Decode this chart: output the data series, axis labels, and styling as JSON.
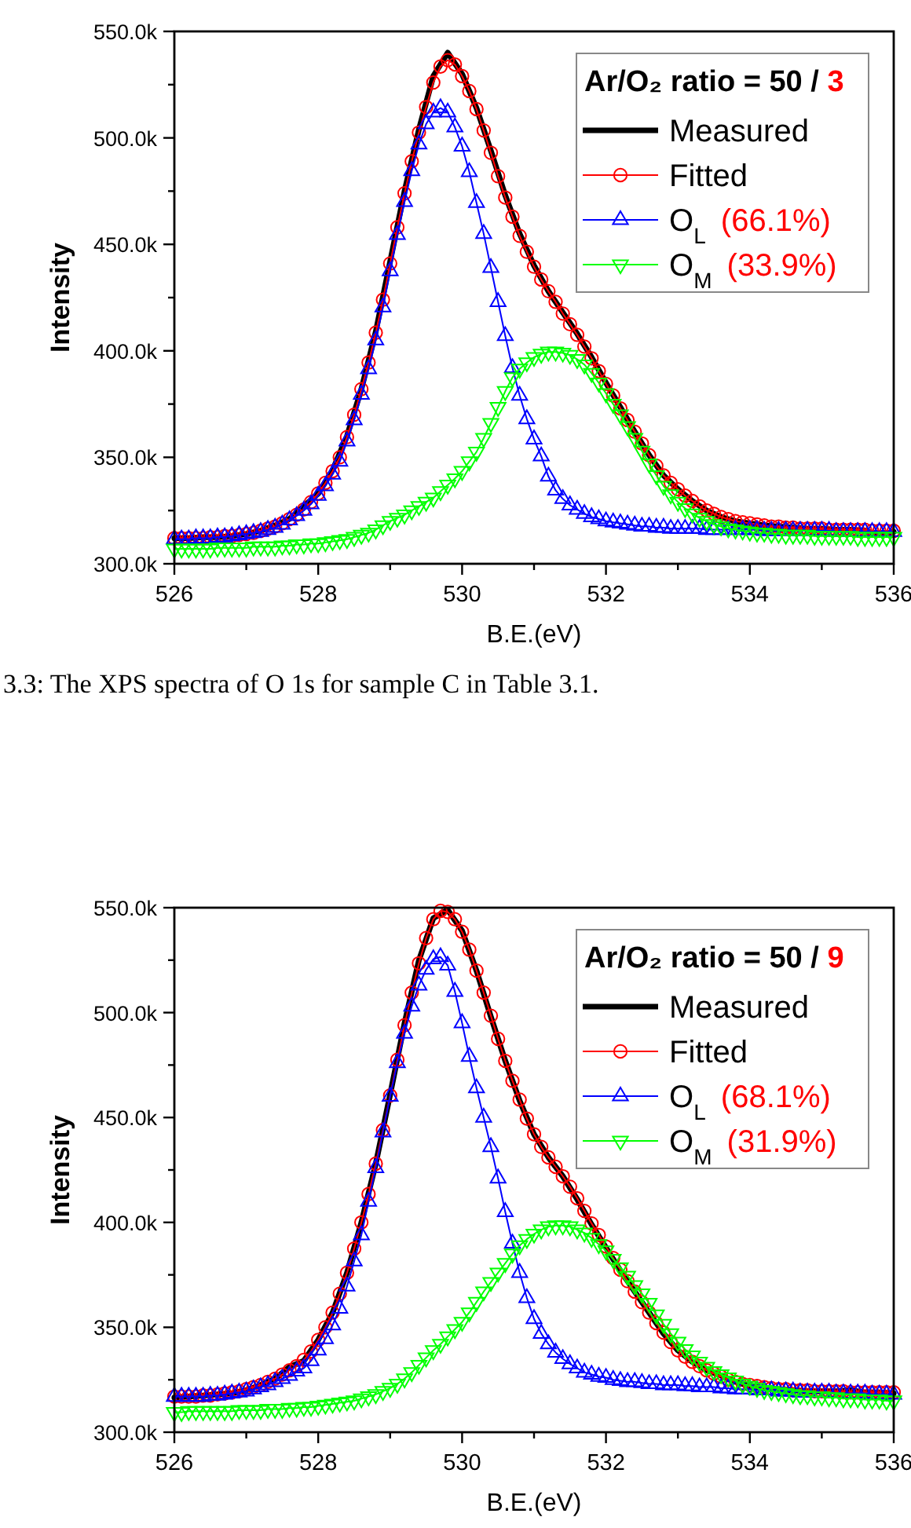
{
  "chart_data": [
    {
      "type": "line",
      "xlabel": "B.E.(eV)",
      "ylabel": "Intensity",
      "legend": "top right",
      "legend_title": "Ar/O₂ ratio = 50 / 3",
      "xlim": [
        526,
        536
      ],
      "xticks": [
        526,
        {
          "value": 527,
          "label": null
        },
        528,
        {
          "value": 529,
          "label": null
        },
        530,
        {
          "value": 531,
          "label": null
        },
        532,
        {
          "value": 533,
          "label": null
        },
        534,
        {
          "value": 535,
          "label": null
        },
        536
      ],
      "ylim": [
        300000,
        550000
      ],
      "yticks": [
        {
          "value": 300000,
          "label": "300.0k"
        },
        {
          "value": 325000,
          "label": null
        },
        {
          "value": 350000,
          "label": "350.0k"
        },
        {
          "value": 375000,
          "label": null
        },
        {
          "value": 400000,
          "label": "400.0k"
        },
        {
          "value": 425000,
          "label": null
        },
        {
          "value": 450000,
          "label": "450.0k"
        },
        {
          "value": 475000,
          "label": null
        },
        {
          "value": 500000,
          "label": "500.0k"
        },
        {
          "value": 525000,
          "label": null
        },
        {
          "value": 550000,
          "label": "550.0k"
        }
      ],
      "annotations": [
        "3.3: The XPS spectra of O 1s for sample C in Table 3.1."
      ],
      "x": [
        526,
        526.1,
        526.2,
        526.3,
        526.4,
        526.5,
        526.6,
        526.7,
        526.8,
        526.9,
        527,
        527.1,
        527.2,
        527.3,
        527.4,
        527.5,
        527.6,
        527.7,
        527.8,
        527.9,
        528,
        528.1,
        528.2,
        528.3,
        528.4,
        528.5,
        528.6,
        528.7,
        528.8,
        528.9,
        529,
        529.1,
        529.2,
        529.3,
        529.4,
        529.5,
        529.6,
        529.7,
        529.8,
        529.9,
        530,
        530.1,
        530.2,
        530.3,
        530.4,
        530.5,
        530.6,
        530.7,
        530.8,
        530.9,
        531,
        531.1,
        531.2,
        531.3,
        531.4,
        531.5,
        531.6,
        531.7,
        531.8,
        531.9,
        532,
        532.1,
        532.2,
        532.3,
        532.4,
        532.5,
        532.6,
        532.7,
        532.8,
        532.9,
        533,
        533.1,
        533.2,
        533.3,
        533.4,
        533.5,
        533.6,
        533.7,
        533.8,
        533.9,
        534,
        534.1,
        534.2,
        534.3,
        534.4,
        534.5,
        534.6,
        534.7,
        534.8,
        534.9,
        535,
        535.1,
        535.2,
        535.3,
        535.4,
        535.5,
        535.6,
        535.7,
        535.8,
        535.9,
        536
      ],
      "series": [
        {
          "name": "Measured",
          "marker": "none",
          "color": "#000000",
          "x": [
            526,
            526.2,
            526.4,
            526.6,
            526.8,
            527,
            527.2,
            527.4,
            527.6,
            527.8,
            528,
            528.2,
            528.4,
            528.6,
            528.8,
            529,
            529.2,
            529.4,
            529.6,
            529.8,
            530,
            530.2,
            530.4,
            530.6,
            530.8,
            531,
            531.2,
            531.4,
            531.6,
            531.8,
            532,
            532.2,
            532.4,
            532.6,
            532.8,
            533,
            533.2,
            533.4,
            533.6,
            533.8,
            534,
            534.2,
            534.4,
            534.6,
            534.8,
            535,
            535.2,
            535.4,
            535.6,
            535.8,
            536
          ],
          "values": [
            312000,
            312000,
            312500,
            312500,
            313000,
            314000,
            315500,
            318000,
            321000,
            327000,
            333000,
            344000,
            360000,
            382000,
            409000,
            442000,
            475000,
            504000,
            529000,
            540000,
            530000,
            514000,
            494000,
            473000,
            455000,
            440000,
            428000,
            418000,
            408000,
            397000,
            385000,
            373500,
            362000,
            351000,
            341500,
            335000,
            329500,
            325000,
            322000,
            320000,
            319000,
            318000,
            317500,
            317000,
            316500,
            316500,
            316000,
            316000,
            315500,
            313500,
            315000
          ]
        },
        {
          "name": "Fitted",
          "marker": "circle",
          "color": "#ff0000",
          "values": [
            312000,
            312000,
            312000,
            312000,
            312000,
            312500,
            312500,
            313000,
            313000,
            313500,
            314000,
            314500,
            315500,
            316500,
            317500,
            319000,
            321000,
            323000,
            325500,
            329000,
            333000,
            338000,
            343500,
            350000,
            359500,
            370000,
            382000,
            394500,
            408500,
            424000,
            441000,
            458000,
            474000,
            489000,
            502500,
            514500,
            526000,
            533500,
            536500,
            534500,
            529000,
            522000,
            513500,
            503500,
            493000,
            482000,
            472000,
            463000,
            454000,
            446500,
            439500,
            433500,
            428000,
            423000,
            417500,
            412500,
            407500,
            402000,
            396500,
            390500,
            384500,
            379000,
            373000,
            367500,
            362000,
            356500,
            351000,
            346000,
            341500,
            338000,
            335000,
            332000,
            329500,
            327000,
            325000,
            323500,
            322000,
            321000,
            320000,
            319500,
            319000,
            318500,
            318000,
            317500,
            317500,
            317000,
            317000,
            316500,
            316500,
            316500,
            316500,
            316000,
            316000,
            316000,
            316000,
            316000,
            316000,
            315500,
            315500,
            315500,
            315500
          ]
        },
        {
          "name": "O$_{L}$ (66.1%)",
          "marker": "triangle",
          "color": "#0000ff",
          "values": [
            311500,
            311500,
            311500,
            312000,
            312000,
            312000,
            312500,
            312500,
            313000,
            313500,
            314000,
            314500,
            315000,
            316000,
            317000,
            318500,
            320500,
            322500,
            325000,
            328000,
            332000,
            336500,
            342000,
            348000,
            357500,
            367500,
            379500,
            391500,
            405000,
            420500,
            437500,
            454500,
            470000,
            484500,
            497000,
            506500,
            512000,
            514000,
            512000,
            505000,
            496000,
            484000,
            469500,
            455000,
            439000,
            423000,
            407000,
            392000,
            379000,
            368000,
            358500,
            350500,
            341000,
            334500,
            330500,
            327500,
            325500,
            323500,
            322000,
            321000,
            320000,
            319500,
            319000,
            318500,
            318000,
            317500,
            317500,
            317000,
            317000,
            316500,
            316500,
            316500,
            316500,
            316500,
            316000,
            316000,
            316000,
            316000,
            316000,
            316000,
            316000,
            316000,
            315500,
            315500,
            315500,
            315500,
            315500,
            315500,
            315500,
            315500,
            315500,
            315500,
            315000,
            315000,
            315000,
            315000,
            315000,
            315000,
            315000,
            315000,
            315000
          ]
        },
        {
          "name": "O$_{M}$ (33.9%)",
          "marker": "triangle-down",
          "color": "#00ff00",
          "values": [
            307000,
            307000,
            307000,
            307000,
            307000,
            307000,
            307500,
            307500,
            307500,
            307500,
            307500,
            308000,
            308000,
            308000,
            308000,
            308500,
            308500,
            309000,
            309000,
            309500,
            309500,
            310000,
            310500,
            311000,
            311500,
            312500,
            313500,
            314500,
            316000,
            318000,
            320000,
            321500,
            323000,
            325000,
            327000,
            329000,
            331000,
            334000,
            337000,
            340000,
            343500,
            348000,
            352500,
            359000,
            366000,
            373500,
            381000,
            387500,
            391500,
            394500,
            397000,
            398500,
            399500,
            399500,
            399000,
            398000,
            396000,
            393500,
            389500,
            385000,
            380000,
            375000,
            370000,
            364500,
            359000,
            353000,
            347000,
            341500,
            336500,
            332500,
            329000,
            326000,
            323500,
            321500,
            320000,
            318500,
            317500,
            316500,
            316000,
            315500,
            315000,
            314500,
            314500,
            314000,
            314000,
            313500,
            313500,
            313500,
            313500,
            313000,
            313000,
            313000,
            313000,
            313000,
            313000,
            312500,
            312500,
            312500,
            312500,
            312500,
            312500
          ]
        }
      ]
    },
    {
      "type": "line",
      "xlabel": "B.E.(eV)",
      "ylabel": "Intensity",
      "legend": "top right",
      "legend_title": "Ar/O₂ ratio = 50 / 9",
      "xlim": [
        526,
        536
      ],
      "xticks": [
        526,
        {
          "value": 527,
          "label": null
        },
        528,
        {
          "value": 529,
          "label": null
        },
        530,
        {
          "value": 531,
          "label": null
        },
        532,
        {
          "value": 533,
          "label": null
        },
        534,
        {
          "value": 535,
          "label": null
        },
        536
      ],
      "ylim": [
        300000,
        550000
      ],
      "yticks": [
        {
          "value": 300000,
          "label": "300.0k"
        },
        {
          "value": 325000,
          "label": null
        },
        {
          "value": 350000,
          "label": "350.0k"
        },
        {
          "value": 375000,
          "label": null
        },
        {
          "value": 400000,
          "label": "400.0k"
        },
        {
          "value": 425000,
          "label": null
        },
        {
          "value": 450000,
          "label": "450.0k"
        },
        {
          "value": 475000,
          "label": null
        },
        {
          "value": 500000,
          "label": "500.0k"
        },
        {
          "value": 525000,
          "label": null
        },
        {
          "value": 550000,
          "label": "550.0k"
        }
      ],
      "x": [
        526,
        526.1,
        526.2,
        526.3,
        526.4,
        526.5,
        526.6,
        526.7,
        526.8,
        526.9,
        527,
        527.1,
        527.2,
        527.3,
        527.4,
        527.5,
        527.6,
        527.7,
        527.8,
        527.9,
        528,
        528.1,
        528.2,
        528.3,
        528.4,
        528.5,
        528.6,
        528.7,
        528.8,
        528.9,
        529,
        529.1,
        529.2,
        529.3,
        529.4,
        529.5,
        529.6,
        529.7,
        529.8,
        529.9,
        530,
        530.1,
        530.2,
        530.3,
        530.4,
        530.5,
        530.6,
        530.7,
        530.8,
        530.9,
        531,
        531.1,
        531.2,
        531.3,
        531.4,
        531.5,
        531.6,
        531.7,
        531.8,
        531.9,
        532,
        532.1,
        532.2,
        532.3,
        532.4,
        532.5,
        532.6,
        532.7,
        532.8,
        532.9,
        533,
        533.1,
        533.2,
        533.3,
        533.4,
        533.5,
        533.6,
        533.7,
        533.8,
        533.9,
        534,
        534.1,
        534.2,
        534.3,
        534.4,
        534.5,
        534.6,
        534.7,
        534.8,
        534.9,
        535,
        535.1,
        535.2,
        535.3,
        535.4,
        535.5,
        535.6,
        535.7,
        535.8,
        535.9,
        536
      ],
      "series": [
        {
          "name": "Measured",
          "marker": "none",
          "color": "#000000",
          "x": [
            526,
            526.2,
            526.4,
            526.6,
            526.8,
            527,
            527.2,
            527.4,
            527.6,
            527.8,
            528,
            528.2,
            528.4,
            528.6,
            528.8,
            529,
            529.2,
            529.4,
            529.6,
            529.8,
            530,
            530.2,
            530.4,
            530.6,
            530.8,
            531,
            531.2,
            531.4,
            531.6,
            531.8,
            532,
            532.2,
            532.4,
            532.6,
            532.8,
            533,
            533.2,
            533.4,
            533.6,
            533.8,
            534,
            534.2,
            534.4,
            534.6,
            534.8,
            535,
            535.2,
            535.4,
            535.6,
            535.8,
            536
          ],
          "values": [
            316500,
            317000,
            317500,
            318000,
            318500,
            320000,
            322500,
            325500,
            331000,
            334000,
            344000,
            357000,
            376000,
            400000,
            428000,
            461000,
            495000,
            525000,
            545000,
            549000,
            539000,
            520000,
            498000,
            477000,
            458000,
            442000,
            431000,
            422000,
            411000,
            399000,
            388000,
            377000,
            367000,
            357000,
            347000,
            339000,
            333500,
            329500,
            327000,
            324000,
            322000,
            321000,
            320500,
            320000,
            319500,
            319500,
            319500,
            320000,
            319000,
            319000,
            318500
          ]
        },
        {
          "name": "Fitted",
          "marker": "circle",
          "color": "#ff0000",
          "values": [
            317000,
            317000,
            317000,
            317000,
            317500,
            317500,
            318000,
            318500,
            319000,
            319500,
            320500,
            321500,
            322500,
            324000,
            325500,
            327500,
            329500,
            331500,
            334500,
            338500,
            344000,
            350000,
            357000,
            366000,
            376000,
            387500,
            400000,
            413500,
            428000,
            444000,
            460500,
            477500,
            494000,
            509500,
            523500,
            535500,
            544500,
            548500,
            548000,
            544500,
            538500,
            530000,
            520000,
            509500,
            498500,
            487500,
            477000,
            467500,
            458500,
            449500,
            442000,
            436000,
            431000,
            426500,
            422000,
            417000,
            411500,
            405500,
            399500,
            394000,
            388500,
            383000,
            377500,
            372000,
            367000,
            362000,
            357000,
            352000,
            347500,
            343000,
            339000,
            336000,
            333500,
            331500,
            329500,
            328000,
            326500,
            325000,
            324000,
            323000,
            322500,
            322000,
            321500,
            321000,
            320500,
            320500,
            320000,
            320000,
            320000,
            319500,
            319500,
            319500,
            319500,
            319500,
            319000,
            319000,
            319000,
            319000,
            319000,
            319000,
            319000
          ]
        },
        {
          "name": "O$_{L}$ (68.1%)",
          "marker": "triangle",
          "color": "#0000ff",
          "values": [
            317000,
            317000,
            317000,
            317000,
            317000,
            317500,
            317500,
            318000,
            318500,
            319000,
            319500,
            320500,
            321500,
            322500,
            324000,
            325500,
            327000,
            329000,
            330500,
            334000,
            339000,
            344500,
            351000,
            359000,
            369500,
            381500,
            394000,
            410000,
            426000,
            443000,
            460000,
            476000,
            490000,
            503000,
            513000,
            520500,
            525500,
            526500,
            522500,
            510000,
            495000,
            479000,
            464000,
            450000,
            436000,
            421000,
            405000,
            390000,
            376000,
            364000,
            354000,
            347000,
            342000,
            338000,
            335000,
            332500,
            330500,
            328500,
            327500,
            326500,
            326000,
            325000,
            324500,
            324000,
            324000,
            323500,
            323000,
            323000,
            322500,
            322500,
            322500,
            322000,
            322000,
            321500,
            321500,
            321500,
            321000,
            321000,
            320500,
            320500,
            320500,
            320000,
            320000,
            320000,
            319500,
            319500,
            319500,
            319000,
            319000,
            319000,
            319000,
            319000,
            318500,
            318500,
            318500,
            318500,
            318500,
            318000,
            318000,
            318000,
            318000
          ]
        },
        {
          "name": "O$_{M}$ (31.9%)",
          "marker": "triangle-down",
          "color": "#00ff00",
          "values": [
            309500,
            309500,
            310000,
            310000,
            310000,
            310000,
            310000,
            310000,
            310000,
            310500,
            310500,
            310500,
            310500,
            311000,
            311000,
            311000,
            311500,
            311500,
            312000,
            312000,
            312500,
            313000,
            313500,
            314000,
            314500,
            315000,
            316000,
            317000,
            318000,
            319500,
            321000,
            323000,
            325500,
            328500,
            332000,
            335500,
            339000,
            342000,
            345500,
            349000,
            352500,
            357000,
            362000,
            367000,
            371500,
            376000,
            380500,
            385000,
            389000,
            392000,
            394500,
            396500,
            398000,
            398500,
            398500,
            398000,
            396500,
            395000,
            392500,
            389500,
            386500,
            382500,
            378500,
            374500,
            370000,
            366000,
            361500,
            356000,
            351500,
            347000,
            343000,
            339500,
            336500,
            333500,
            331000,
            329000,
            327500,
            326000,
            324500,
            323000,
            322000,
            321000,
            320000,
            319500,
            319000,
            318500,
            318000,
            317500,
            317500,
            317000,
            317000,
            316500,
            316500,
            316000,
            316000,
            316000,
            315500,
            315500,
            315500,
            315000,
            315000
          ]
        }
      ]
    }
  ]
}
